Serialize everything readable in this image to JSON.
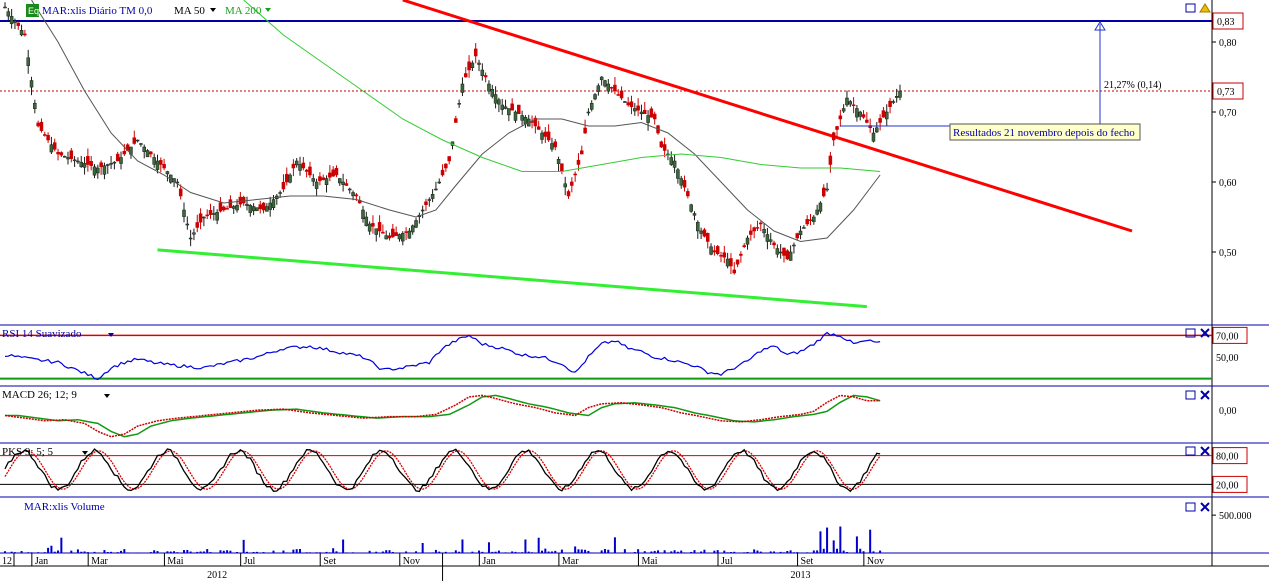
{
  "colors": {
    "price_up": "#1a1a1a",
    "price_down": "#cc0000",
    "ma50": "#555555",
    "ma200": "#33cc33",
    "resistance": "#ff0000",
    "support": "#33ee33",
    "hline_blue": "#0000aa",
    "rsi": "#0000dd",
    "macd": "#cc0000",
    "signal": "#119911",
    "pk_fast": "#000000",
    "pk_slow": "#dd0000",
    "volume": "#0000cc"
  },
  "icons": {
    "eq": "Eq",
    "window": "window-icon",
    "close": "close-icon",
    "alert": "alert-icon"
  },
  "chart_data": [
    {
      "type": "line",
      "panel": "price",
      "series_labels": {
        "price": "MAR:xlis Diário TM 0,0",
        "ma50": "MA 50",
        "ma200": "MA 200"
      },
      "y_ticks": [
        "0,80",
        "0,70",
        "0,60",
        "0,50"
      ],
      "y_tick_values": [
        0.8,
        0.7,
        0.6,
        0.5
      ],
      "ylim": [
        0.4,
        0.86
      ],
      "current_price_label": "0,73",
      "current_price": 0.73,
      "hline_label": "0,83",
      "hline_value": 0.83,
      "annotation_pct": "21,27% (0,14)",
      "annotation_note": "Resultados 21 novembro depois do fecho",
      "price_path": [
        [
          0,
          0.85
        ],
        [
          3,
          0.81
        ],
        [
          5,
          0.68
        ],
        [
          8,
          0.64
        ],
        [
          11,
          0.63
        ],
        [
          14,
          0.62
        ],
        [
          17,
          0.63
        ],
        [
          20,
          0.66
        ],
        [
          23,
          0.63
        ],
        [
          26,
          0.6
        ],
        [
          28,
          0.52
        ],
        [
          30,
          0.55
        ],
        [
          33,
          0.56
        ],
        [
          36,
          0.57
        ],
        [
          39,
          0.56
        ],
        [
          42,
          0.59
        ],
        [
          44,
          0.63
        ],
        [
          47,
          0.6
        ],
        [
          50,
          0.61
        ],
        [
          53,
          0.58
        ],
        [
          55,
          0.54
        ],
        [
          58,
          0.52
        ],
        [
          61,
          0.53
        ],
        [
          63,
          0.56
        ],
        [
          65,
          0.59
        ],
        [
          67,
          0.63
        ],
        [
          69,
          0.74
        ],
        [
          71,
          0.78
        ],
        [
          73,
          0.74
        ],
        [
          75,
          0.71
        ],
        [
          77,
          0.7
        ],
        [
          79,
          0.69
        ],
        [
          81,
          0.67
        ],
        [
          83,
          0.65
        ],
        [
          85,
          0.58
        ],
        [
          87,
          0.64
        ],
        [
          88,
          0.7
        ],
        [
          90,
          0.75
        ],
        [
          92,
          0.73
        ],
        [
          94,
          0.71
        ],
        [
          96,
          0.7
        ],
        [
          98,
          0.69
        ],
        [
          99,
          0.65
        ],
        [
          101,
          0.63
        ],
        [
          103,
          0.58
        ],
        [
          105,
          0.53
        ],
        [
          107,
          0.5
        ],
        [
          109,
          0.49
        ],
        [
          110,
          0.47
        ],
        [
          112,
          0.52
        ],
        [
          114,
          0.54
        ],
        [
          116,
          0.51
        ],
        [
          118,
          0.49
        ],
        [
          120,
          0.53
        ],
        [
          122,
          0.55
        ],
        [
          124,
          0.59
        ],
        [
          125,
          0.66
        ],
        [
          127,
          0.72
        ],
        [
          129,
          0.7
        ],
        [
          131,
          0.67
        ],
        [
          133,
          0.7
        ],
        [
          135,
          0.73
        ]
      ],
      "ma50_path": [
        [
          4,
          0.86
        ],
        [
          8,
          0.8
        ],
        [
          12,
          0.73
        ],
        [
          16,
          0.67
        ],
        [
          20,
          0.63
        ],
        [
          24,
          0.61
        ],
        [
          28,
          0.585
        ],
        [
          33,
          0.57
        ],
        [
          38,
          0.575
        ],
        [
          43,
          0.58
        ],
        [
          48,
          0.58
        ],
        [
          53,
          0.575
        ],
        [
          58,
          0.56
        ],
        [
          62,
          0.55
        ],
        [
          65,
          0.56
        ],
        [
          68,
          0.595
        ],
        [
          72,
          0.64
        ],
        [
          76,
          0.67
        ],
        [
          80,
          0.69
        ],
        [
          84,
          0.69
        ],
        [
          88,
          0.68
        ],
        [
          92,
          0.68
        ],
        [
          96,
          0.685
        ],
        [
          100,
          0.67
        ],
        [
          104,
          0.64
        ],
        [
          108,
          0.6
        ],
        [
          112,
          0.56
        ],
        [
          116,
          0.53
        ],
        [
          120,
          0.515
        ],
        [
          124,
          0.52
        ],
        [
          128,
          0.56
        ],
        [
          132,
          0.61
        ]
      ],
      "ma200_path": [
        [
          36,
          0.86
        ],
        [
          42,
          0.81
        ],
        [
          48,
          0.77
        ],
        [
          54,
          0.73
        ],
        [
          60,
          0.69
        ],
        [
          66,
          0.66
        ],
        [
          72,
          0.635
        ],
        [
          78,
          0.615
        ],
        [
          84,
          0.615
        ],
        [
          90,
          0.625
        ],
        [
          96,
          0.635
        ],
        [
          102,
          0.64
        ],
        [
          108,
          0.635
        ],
        [
          114,
          0.625
        ],
        [
          120,
          0.62
        ],
        [
          126,
          0.62
        ],
        [
          132,
          0.615
        ]
      ],
      "resistance_line": [
        [
          60,
          0.86
        ],
        [
          170,
          0.53
        ]
      ],
      "support_line": [
        [
          23,
          0.503
        ],
        [
          130,
          0.422
        ]
      ]
    },
    {
      "type": "line",
      "panel": "rsi",
      "series_labels": {
        "rsi": "RSI 14 Suavizado"
      },
      "y_ticks": [
        "70,00",
        "50,00"
      ],
      "levels": [
        70,
        30
      ],
      "ylim": [
        25,
        75
      ],
      "rsi_path": [
        [
          0,
          52
        ],
        [
          4,
          48
        ],
        [
          8,
          45
        ],
        [
          10,
          40
        ],
        [
          12,
          35
        ],
        [
          14,
          30
        ],
        [
          16,
          40
        ],
        [
          18,
          45
        ],
        [
          20,
          48
        ],
        [
          23,
          44
        ],
        [
          26,
          42
        ],
        [
          30,
          40
        ],
        [
          34,
          45
        ],
        [
          38,
          50
        ],
        [
          42,
          58
        ],
        [
          46,
          60
        ],
        [
          50,
          55
        ],
        [
          54,
          50
        ],
        [
          57,
          38
        ],
        [
          60,
          40
        ],
        [
          64,
          45
        ],
        [
          66,
          58
        ],
        [
          68,
          65
        ],
        [
          70,
          70
        ],
        [
          72,
          62
        ],
        [
          75,
          58
        ],
        [
          78,
          52
        ],
        [
          81,
          50
        ],
        [
          84,
          44
        ],
        [
          86,
          35
        ],
        [
          88,
          50
        ],
        [
          90,
          62
        ],
        [
          92,
          65
        ],
        [
          94,
          58
        ],
        [
          96,
          55
        ],
        [
          98,
          50
        ],
        [
          100,
          48
        ],
        [
          102,
          45
        ],
        [
          104,
          42
        ],
        [
          106,
          36
        ],
        [
          108,
          34
        ],
        [
          110,
          40
        ],
        [
          112,
          46
        ],
        [
          114,
          56
        ],
        [
          116,
          60
        ],
        [
          118,
          52
        ],
        [
          120,
          55
        ],
        [
          122,
          62
        ],
        [
          124,
          72
        ],
        [
          126,
          70
        ],
        [
          128,
          62
        ],
        [
          130,
          65
        ],
        [
          132,
          63
        ]
      ]
    },
    {
      "type": "line",
      "panel": "macd",
      "series_labels": {
        "macd": "MACD 26; 12; 9"
      },
      "y_ticks": [
        "0,00"
      ],
      "ylim": [
        -0.06,
        0.04
      ],
      "macd_path": [
        [
          0,
          -0.01
        ],
        [
          3,
          -0.015
        ],
        [
          6,
          -0.02
        ],
        [
          9,
          -0.018
        ],
        [
          12,
          -0.025
        ],
        [
          14,
          -0.04
        ],
        [
          16,
          -0.05
        ],
        [
          18,
          -0.045
        ],
        [
          20,
          -0.03
        ],
        [
          23,
          -0.02
        ],
        [
          26,
          -0.015
        ],
        [
          30,
          -0.01
        ],
        [
          34,
          -0.005
        ],
        [
          38,
          0.0
        ],
        [
          42,
          0.002
        ],
        [
          46,
          -0.005
        ],
        [
          50,
          -0.01
        ],
        [
          54,
          -0.015
        ],
        [
          58,
          -0.012
        ],
        [
          62,
          -0.012
        ],
        [
          65,
          -0.008
        ],
        [
          68,
          0.01
        ],
        [
          70,
          0.025
        ],
        [
          72,
          0.028
        ],
        [
          74,
          0.022
        ],
        [
          77,
          0.012
        ],
        [
          80,
          0.005
        ],
        [
          83,
          -0.005
        ],
        [
          86,
          -0.01
        ],
        [
          88,
          0.005
        ],
        [
          90,
          0.012
        ],
        [
          93,
          0.014
        ],
        [
          96,
          0.01
        ],
        [
          99,
          0.005
        ],
        [
          102,
          -0.005
        ],
        [
          105,
          -0.012
        ],
        [
          108,
          -0.02
        ],
        [
          111,
          -0.022
        ],
        [
          114,
          -0.018
        ],
        [
          117,
          -0.012
        ],
        [
          120,
          -0.008
        ],
        [
          122,
          -0.002
        ],
        [
          124,
          0.015
        ],
        [
          126,
          0.028
        ],
        [
          128,
          0.025
        ],
        [
          130,
          0.018
        ],
        [
          132,
          0.018
        ]
      ]
    },
    {
      "type": "line",
      "panel": "pks",
      "series_labels": {
        "pks": "PKS 9; 5; 5"
      },
      "y_ticks": [
        "80,00",
        "20,00"
      ],
      "levels": [
        80,
        20
      ],
      "ylim": [
        0,
        100
      ]
    },
    {
      "type": "bar",
      "panel": "volume",
      "series_labels": {
        "volume": "MAR:xlis Volume"
      },
      "y_ticks": [
        "500.000"
      ]
    }
  ],
  "x_axis": {
    "month_labels": [
      "12",
      "Jan",
      "Mar",
      "Mai",
      "Jul",
      "Set",
      "Nov",
      "Jan",
      "Mar",
      "Mai",
      "Jul",
      "Set",
      "Nov"
    ],
    "month_positions": [
      0,
      4.5,
      13,
      24.5,
      36,
      48,
      60,
      72,
      84,
      96,
      108,
      120,
      130
    ],
    "year_labels": [
      "2012",
      "2013"
    ],
    "year_positions": [
      32,
      120
    ]
  }
}
